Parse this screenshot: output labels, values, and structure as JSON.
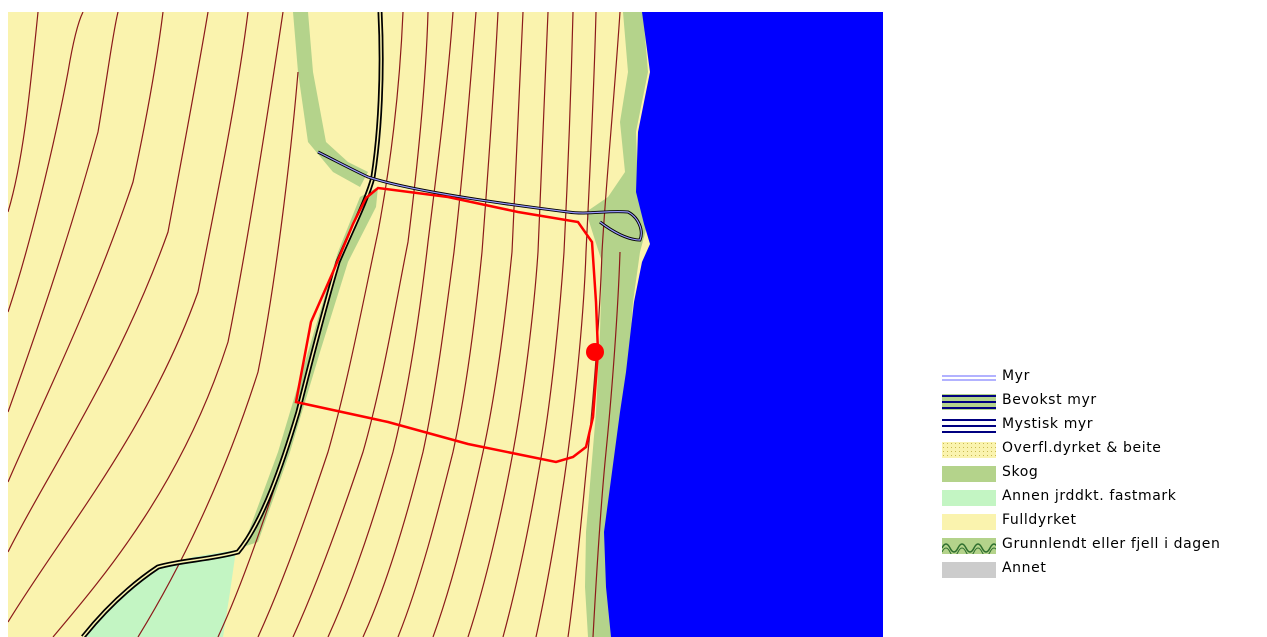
{
  "colors": {
    "fulldyrket": "#FAF3AE",
    "skog": "#B4D38B",
    "annen_jorddekt": "#C3F5C3",
    "water": "#0000FF",
    "contour": "#8B1A1A",
    "boundary": "#FF0000",
    "myr": "#9999FF",
    "annet": "#CCCCCC"
  },
  "legend": {
    "items": [
      {
        "key": "myr",
        "label": "Myr",
        "icon": "myr-line-icon"
      },
      {
        "key": "bevokst_myr",
        "label": "Bevokst myr",
        "icon": "bevokst-myr-icon"
      },
      {
        "key": "mystisk_myr",
        "label": "Mystisk myr",
        "icon": "mystisk-myr-icon"
      },
      {
        "key": "overfl",
        "label": "Overfl.dyrket & beite",
        "icon": "dotted-fill-icon"
      },
      {
        "key": "skog",
        "label": "Skog",
        "icon": "green-fill-icon"
      },
      {
        "key": "annen",
        "label": "Annen jrddkt. fastmark",
        "icon": "light-green-fill-icon"
      },
      {
        "key": "fulldyrket",
        "label": "Fulldyrket",
        "icon": "yellow-fill-icon"
      },
      {
        "key": "grunnlendt",
        "label": "Grunnlendt eller fjell i dagen",
        "icon": "wave-pattern-icon"
      },
      {
        "key": "annet",
        "label": "Annet",
        "icon": "grey-fill-icon"
      }
    ]
  }
}
